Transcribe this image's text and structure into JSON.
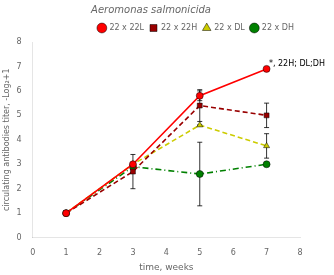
{
  "chart_data": {
    "type": "line",
    "title": "Aeromonas salmonicida",
    "x_label": "time, weeks",
    "y_label": "circulating antibodies titer, -Log₂+1",
    "x": [
      1,
      3,
      5,
      7
    ],
    "series": [
      {
        "name": "22 x 22L",
        "color": "#ff0000",
        "marker": "circle",
        "line_style": "solid",
        "values": [
          1.0,
          3.0,
          5.8,
          6.9
        ],
        "yerr": [
          0.0,
          0.0,
          0.2,
          0.0
        ]
      },
      {
        "name": "22 x 22H",
        "color": "#990000",
        "marker": "square",
        "line_style": "dashed",
        "values": [
          1.0,
          2.7,
          5.4,
          5.0
        ],
        "yerr": [
          0.0,
          0.7,
          0.65,
          0.5
        ]
      },
      {
        "name": "22 x DL",
        "color": "#cccc00",
        "marker": "triangle",
        "line_style": "dashed",
        "values": [
          1.0,
          3.0,
          4.6,
          3.75
        ],
        "yerr": [
          0.0,
          0.0,
          0.0,
          0.5
        ]
      },
      {
        "name": "22 x DH",
        "color": "#008000",
        "marker": "circle",
        "line_style": "dashdot",
        "values": [
          1.0,
          2.9,
          2.6,
          3.0
        ],
        "yerr": [
          0.0,
          0.0,
          1.3,
          0.0
        ]
      }
    ],
    "xlim": [
      0,
      8
    ],
    "ylim": [
      0,
      8
    ],
    "xticks": [
      0,
      1,
      2,
      3,
      4,
      5,
      6,
      7,
      8
    ],
    "yticks": [
      0,
      1,
      2,
      3,
      4,
      5,
      6,
      7,
      8
    ],
    "annotations": [
      {
        "text": "*, 22H; DL;DH",
        "x": 7.07,
        "y": 7.1
      }
    ],
    "legend": "upper right",
    "grid": false
  }
}
